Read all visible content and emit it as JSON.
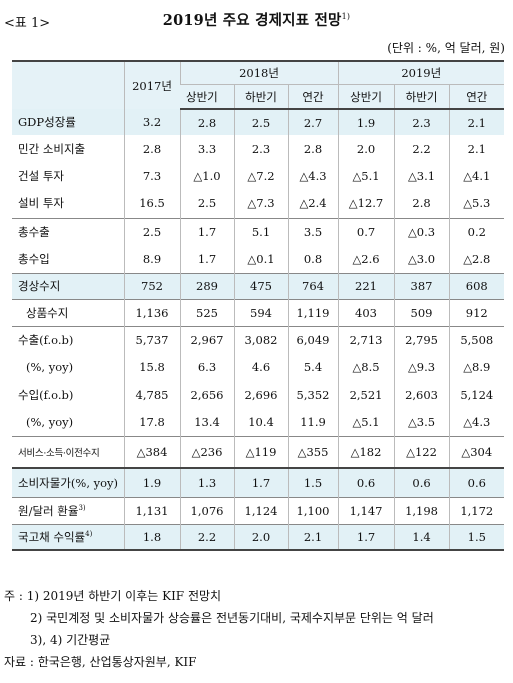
{
  "header": {
    "table_label": "<표 1>",
    "title": "2019년 주요 경제지표 전망",
    "title_note": "1)",
    "unit": "(단위 : %, 억 달러, 원)"
  },
  "columns": {
    "y2017": "2017년",
    "y2018": "2018년",
    "y2019": "2019년",
    "h1": "상반기",
    "h2": "하반기",
    "annual": "연간"
  },
  "rows": [
    {
      "label": "GDP성장률",
      "v": [
        "3.2",
        "2.8",
        "2.5",
        "2.7",
        "1.9",
        "2.3",
        "2.1"
      ]
    },
    {
      "label": "민간 소비지출",
      "v": [
        "2.8",
        "3.3",
        "2.3",
        "2.8",
        "2.0",
        "2.2",
        "2.1"
      ]
    },
    {
      "label": "건설 투자",
      "v": [
        "7.3",
        "△1.0",
        "△7.2",
        "△4.3",
        "△5.1",
        "△3.1",
        "△4.1"
      ]
    },
    {
      "label": "설비 투자",
      "v": [
        "16.5",
        "2.5",
        "△7.3",
        "△2.4",
        "△12.7",
        "2.8",
        "△5.3"
      ]
    },
    {
      "label": "총수출",
      "v": [
        "2.5",
        "1.7",
        "5.1",
        "3.5",
        "0.7",
        "△0.3",
        "0.2"
      ]
    },
    {
      "label": "총수입",
      "v": [
        "8.9",
        "1.7",
        "△0.1",
        "0.8",
        "△2.6",
        "△3.0",
        "△2.8"
      ]
    },
    {
      "label": "경상수지",
      "v": [
        "752",
        "289",
        "475",
        "764",
        "221",
        "387",
        "608"
      ]
    },
    {
      "label": "상품수지",
      "v": [
        "1,136",
        "525",
        "594",
        "1,119",
        "403",
        "509",
        "912"
      ]
    },
    {
      "label": "수출(f.o.b)",
      "v": [
        "5,737",
        "2,967",
        "3,082",
        "6,049",
        "2,713",
        "2,795",
        "5,508"
      ]
    },
    {
      "label": "(%, yoy)",
      "v": [
        "15.8",
        "6.3",
        "4.6",
        "5.4",
        "△8.5",
        "△9.3",
        "△8.9"
      ]
    },
    {
      "label": "수입(f.o.b)",
      "v": [
        "4,785",
        "2,656",
        "2,696",
        "5,352",
        "2,521",
        "2,603",
        "5,124"
      ]
    },
    {
      "label": "(%, yoy)",
      "v": [
        "17.8",
        "13.4",
        "10.4",
        "11.9",
        "△5.1",
        "△3.5",
        "△4.3"
      ]
    },
    {
      "label": "서비스·소득·이전수지",
      "v": [
        "△384",
        "△236",
        "△119",
        "△355",
        "△182",
        "△122",
        "△304"
      ]
    },
    {
      "label": "소비자물가(%, yoy)",
      "v": [
        "1.9",
        "1.3",
        "1.7",
        "1.5",
        "0.6",
        "0.6",
        "0.6"
      ]
    },
    {
      "label": "원/달러 환율",
      "note": "3)",
      "v": [
        "1,131",
        "1,076",
        "1,124",
        "1,100",
        "1,147",
        "1,198",
        "1,172"
      ]
    },
    {
      "label": "국고채 수익률",
      "note": "4)",
      "v": [
        "1.8",
        "2.2",
        "2.0",
        "2.1",
        "1.7",
        "1.4",
        "1.5"
      ]
    }
  ],
  "notes": {
    "n1": "주 : 1) 2019년 하반기 이후는 KIF 전망치",
    "n2": "2) 국민계정 및 소비자물가 상승률은 전년동기대비, 국제수지부문 단위는 억 달러",
    "n3": "3), 4) 기간평균",
    "source": "자료 : 한국은행, 산업통상자원부, KIF"
  }
}
